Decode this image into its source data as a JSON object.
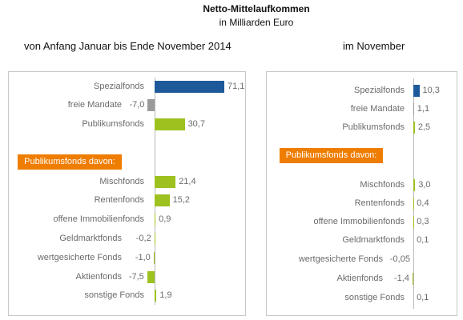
{
  "header": {
    "title": "Netto-Mittelaufkommen",
    "subtitle": "in Milliarden Euro"
  },
  "colors": {
    "text": "#6b6b6b",
    "frame": "#c8c8c8",
    "axis": "#b8b8b8",
    "group_heading_bg": "#ef7d00",
    "group_heading_text": "#ffffff"
  },
  "chart_data": [
    {
      "type": "bar",
      "orientation": "horizontal",
      "title": "von Anfang Januar bis Ende November 2014",
      "sections": [
        {
          "categories": [
            "Spezialfonds",
            "freie Mandate",
            "Publikumsfonds"
          ],
          "values": [
            71.1,
            -7.0,
            30.7
          ],
          "value_labels": [
            "71,1",
            "-7,0",
            "30,7"
          ],
          "bar_colors": [
            "#1e5a9a",
            "#9a9a9a",
            "#9dc11e"
          ]
        },
        {
          "heading": "Publikumsfonds davon:",
          "categories": [
            "Mischfonds",
            "Rentenfonds",
            "offene Immobilienfonds",
            "Geldmarktfonds",
            "wertgesicherte Fonds",
            "Aktienfonds",
            "sonstige Fonds"
          ],
          "values": [
            21.4,
            15.2,
            0.9,
            -0.2,
            -1.0,
            -7.5,
            1.9
          ],
          "value_labels": [
            "21,4",
            "15,2",
            "0,9",
            "-0,2",
            "-1,0",
            "-7,5",
            "1,9"
          ],
          "bar_colors": [
            "#9dc11e",
            "#9dc11e",
            "#9dc11e",
            "#9dc11e",
            "#9dc11e",
            "#9dc11e",
            "#9dc11e"
          ]
        }
      ]
    },
    {
      "type": "bar",
      "orientation": "horizontal",
      "title": "im November",
      "sections": [
        {
          "categories": [
            "Spezialfonds",
            "freie Mandate",
            "Publikumsfonds"
          ],
          "values": [
            10.3,
            1.1,
            2.5
          ],
          "value_labels": [
            "10,3",
            "1,1",
            "2,5"
          ],
          "bar_colors": [
            "#1e5a9a",
            "#9a9a9a",
            "#9dc11e"
          ]
        },
        {
          "heading": "Publikumsfonds davon:",
          "categories": [
            "Mischfonds",
            "Rentenfonds",
            "offene Immobilienfonds",
            "Geldmarktfonds",
            "wertgesicherte Fonds",
            "Aktienfonds",
            "sonstige Fonds"
          ],
          "values": [
            3.0,
            0.4,
            0.3,
            0.1,
            -0.05,
            -1.4,
            0.1
          ],
          "value_labels": [
            "3,0",
            "0,4",
            "0,3",
            "0,1",
            "-0,05",
            "-1,4",
            "0,1"
          ],
          "bar_colors": [
            "#9dc11e",
            "#9dc11e",
            "#9dc11e",
            "#9dc11e",
            "#9dc11e",
            "#9dc11e",
            "#9dc11e"
          ]
        }
      ]
    }
  ]
}
